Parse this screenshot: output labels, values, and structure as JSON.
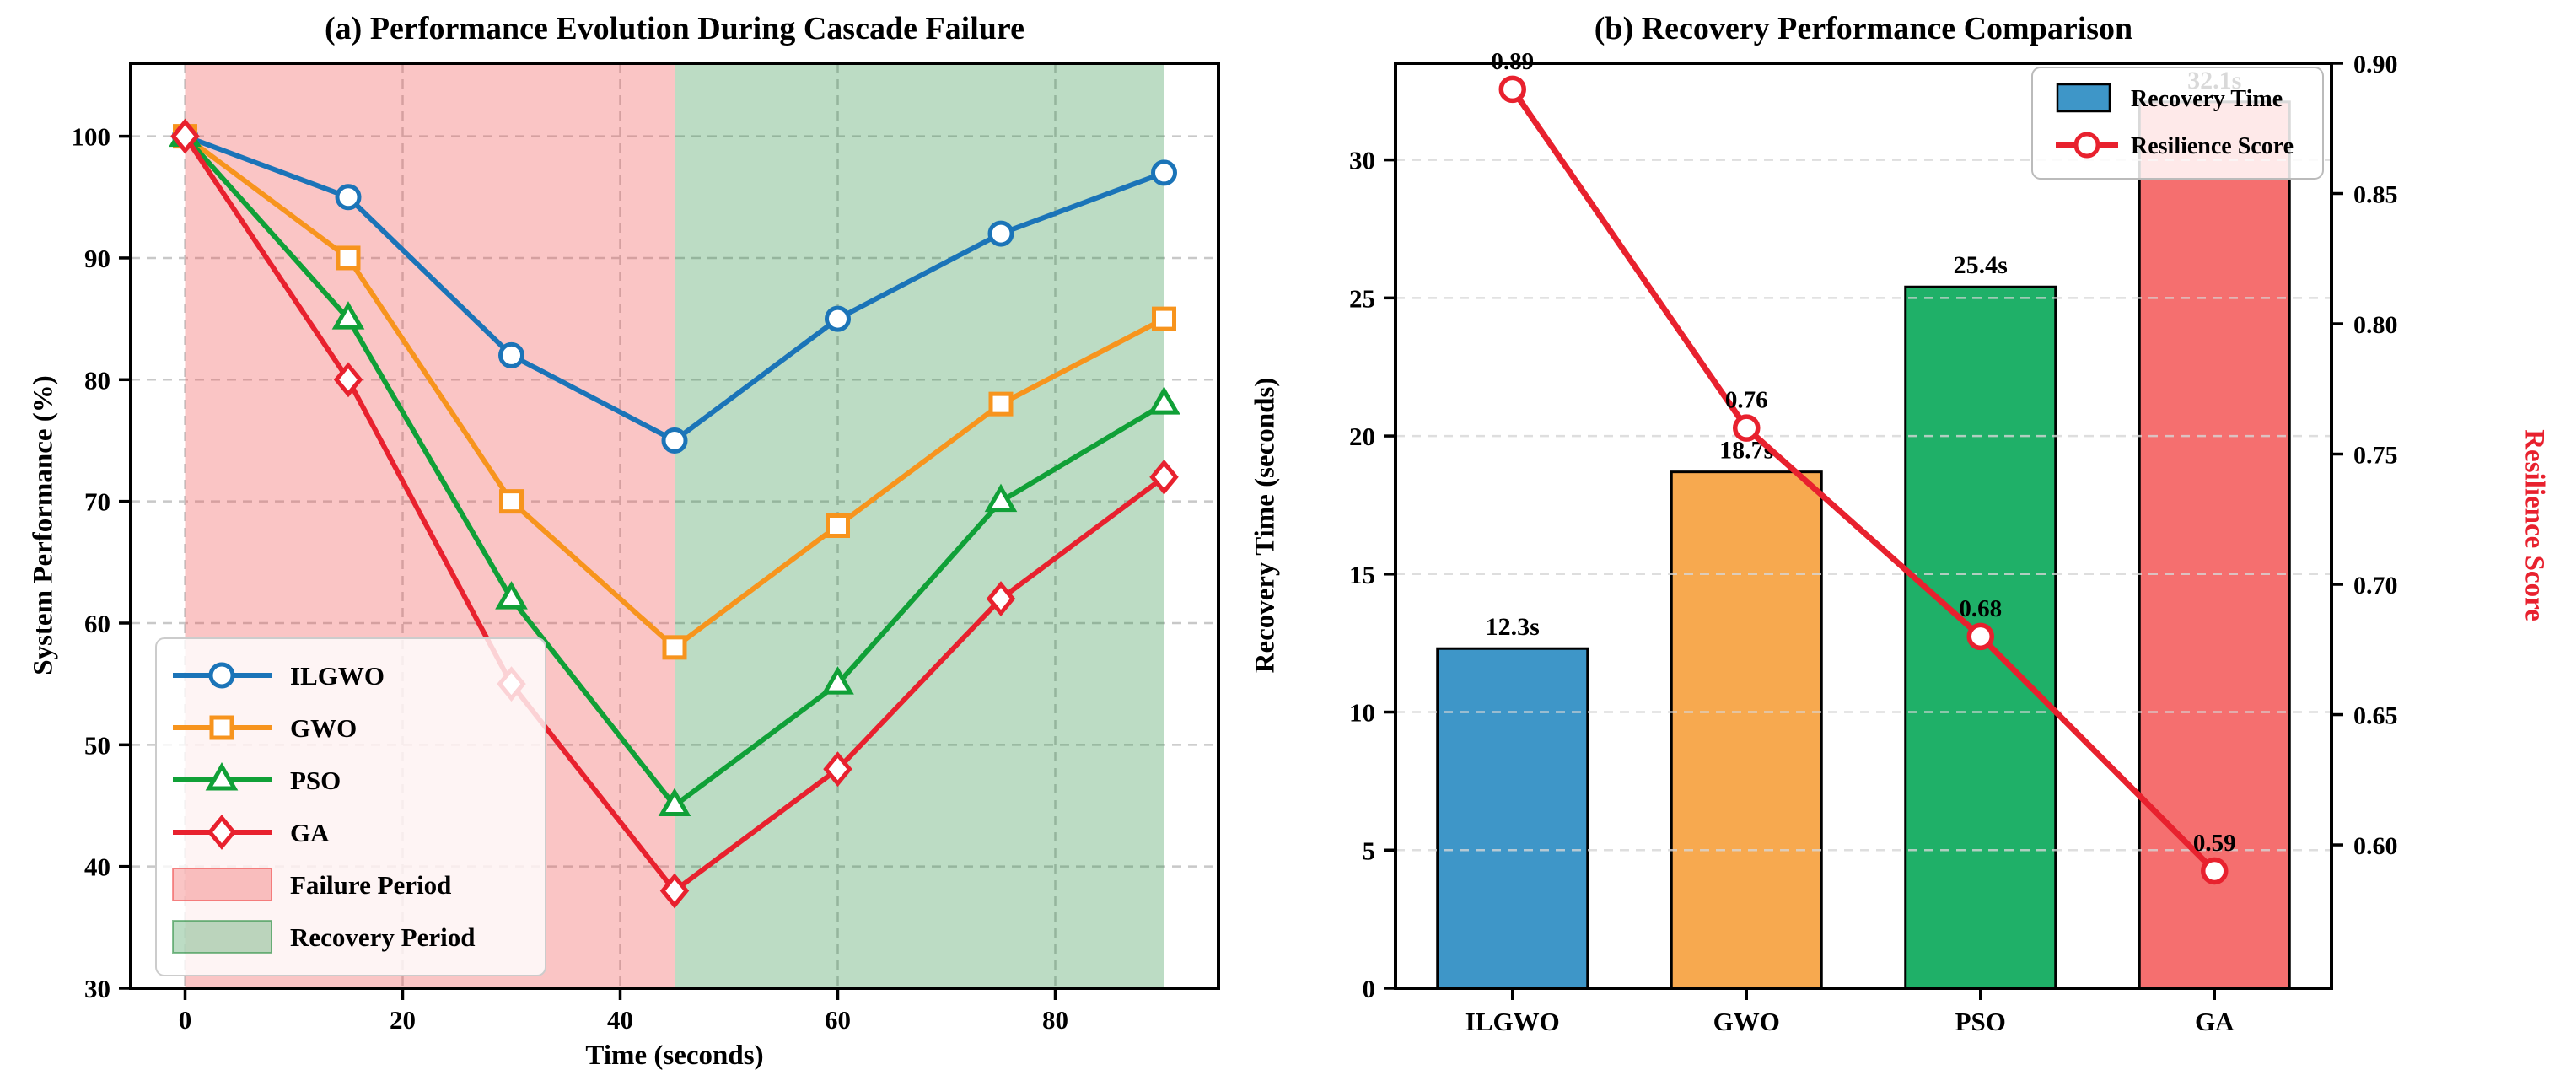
{
  "figure": {
    "background": "#ffffff"
  },
  "chart_data": [
    {
      "type": "line",
      "title": "(a) Performance Evolution During Cascade Failure",
      "xlabel": "Time (seconds)",
      "ylabel": "System Performance (%)",
      "x": [
        0,
        15,
        30,
        45,
        60,
        75,
        90
      ],
      "xlim": [
        -5,
        95
      ],
      "ylim": [
        30,
        106
      ],
      "xticks": [
        0,
        20,
        40,
        60,
        80
      ],
      "yticks": [
        30,
        40,
        50,
        60,
        70,
        80,
        90,
        100
      ],
      "grid": true,
      "series": [
        {
          "name": "ILGWO",
          "color": "#1B74B8",
          "marker": "circle",
          "values": [
            100,
            95,
            82,
            75,
            85,
            92,
            97
          ]
        },
        {
          "name": "GWO",
          "color": "#F7941D",
          "marker": "square",
          "values": [
            100,
            90,
            70,
            58,
            68,
            78,
            85
          ]
        },
        {
          "name": "PSO",
          "color": "#10A037",
          "marker": "triangle",
          "values": [
            100,
            85,
            62,
            45,
            55,
            70,
            78
          ]
        },
        {
          "name": "GA",
          "color": "#E8212E",
          "marker": "diamond",
          "values": [
            100,
            80,
            55,
            38,
            48,
            62,
            72
          ]
        }
      ],
      "regions": [
        {
          "label": "Failure Period",
          "from": 0,
          "to": 45,
          "fill": "rgba(240,80,80,0.33)",
          "edge": "rgba(240,80,80,0.6)"
        },
        {
          "label": "Recovery Period",
          "from": 45,
          "to": 90,
          "fill": "rgba(34,139,58,0.30)",
          "edge": "rgba(34,139,58,0.55)"
        }
      ],
      "legend_position": "lower-left"
    },
    {
      "type": "bar+line",
      "title": "(b) Recovery Performance Comparison",
      "ylabel_left": "Recovery Time (seconds)",
      "ylabel_right": "Resilience Score",
      "categories": [
        "ILGWO",
        "GWO",
        "PSO",
        "GA"
      ],
      "bars": {
        "name": "Recovery Time",
        "values": [
          12.3,
          18.7,
          25.4,
          32.1
        ],
        "labels": [
          "12.3s",
          "18.7s",
          "25.4s",
          "32.1s"
        ],
        "colors": [
          "#3E96C8",
          "#F7A94F",
          "#1FB068",
          "#F56F6F"
        ]
      },
      "line": {
        "name": "Resilience Score",
        "values": [
          0.89,
          0.76,
          0.68,
          0.59
        ],
        "labels": [
          "0.89",
          "0.76",
          "0.68",
          "0.59"
        ],
        "color": "#E8212E"
      },
      "ylim_left": [
        0,
        33.5
      ],
      "yticks_left": [
        0,
        5,
        10,
        15,
        20,
        25,
        30
      ],
      "ylim_right": [
        0.545,
        0.9
      ],
      "yticks_right": {
        "values": [
          0.6,
          0.65,
          0.7,
          0.75,
          0.8,
          0.85,
          0.9
        ],
        "labels": [
          "0.60",
          "0.65",
          "0.70",
          "0.75",
          "0.80",
          "0.85",
          "0.90"
        ]
      },
      "grid": true,
      "legend_position": "upper-right",
      "legend": [
        "Recovery Time",
        "Resilience Score"
      ]
    }
  ]
}
